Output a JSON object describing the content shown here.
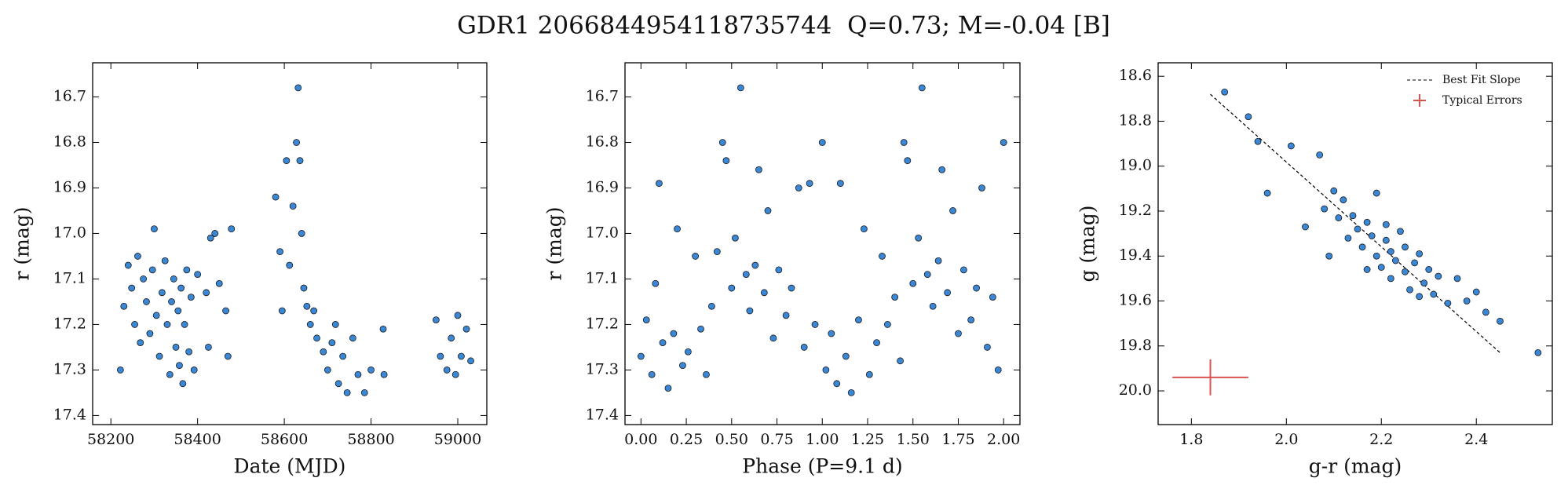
{
  "title": "GDR1 2066844954118735744  Q=0.73; M=-0.04 [B]",
  "chart_data": [
    {
      "type": "scatter",
      "xlabel": "Date (MJD)",
      "ylabel": "r (mag)",
      "color": "#3a87d6",
      "xlim": [
        58158,
        59067
      ],
      "ylim": [
        17.42,
        16.625
      ],
      "xticks": [
        58200,
        58400,
        58600,
        58800,
        59000
      ],
      "yticks": [
        16.7,
        16.8,
        16.9,
        {
          "value": 17,
          "label": "17.0"
        },
        17.1,
        17.2,
        17.3,
        17.4
      ],
      "x": [
        58222,
        58230,
        58240,
        58248,
        58255,
        58262,
        58268,
        58275,
        58282,
        58290,
        58296,
        58300,
        58305,
        58312,
        58318,
        58325,
        58330,
        58336,
        58340,
        58345,
        58350,
        58355,
        58358,
        58362,
        58366,
        58370,
        58375,
        58380,
        58385,
        58392,
        58400,
        58420,
        58425,
        58430,
        58440,
        58450,
        58465,
        58470,
        58478,
        58580,
        58590,
        58595,
        58605,
        58612,
        58620,
        58628,
        58632,
        58636,
        58640,
        58645,
        58652,
        58660,
        58668,
        58675,
        58690,
        58700,
        58710,
        58718,
        58725,
        58735,
        58745,
        58758,
        58770,
        58785,
        58800,
        58828,
        58830,
        58950,
        58960,
        58975,
        58985,
        58995,
        59000,
        59008,
        59020,
        59030
      ],
      "values": [
        17.3,
        17.16,
        17.07,
        17.12,
        17.2,
        17.05,
        17.24,
        17.1,
        17.15,
        17.22,
        17.08,
        16.99,
        17.18,
        17.27,
        17.13,
        17.06,
        17.2,
        17.31,
        17.15,
        17.1,
        17.25,
        17.17,
        17.29,
        17.12,
        17.33,
        17.2,
        17.08,
        17.26,
        17.14,
        17.3,
        17.09,
        17.13,
        17.25,
        17.01,
        17.0,
        17.11,
        17.17,
        17.27,
        16.99,
        16.92,
        17.04,
        17.17,
        16.84,
        17.07,
        16.94,
        16.8,
        16.68,
        16.84,
        17.0,
        17.12,
        17.16,
        17.2,
        17.17,
        17.23,
        17.26,
        17.3,
        17.24,
        17.2,
        17.33,
        17.27,
        17.35,
        17.23,
        17.31,
        17.35,
        17.3,
        17.21,
        17.31,
        17.19,
        17.27,
        17.3,
        17.23,
        17.31,
        17.18,
        17.27,
        17.21,
        17.28
      ]
    },
    {
      "type": "scatter",
      "xlabel": "Phase (P=9.1 d)",
      "ylabel": "r (mag)",
      "color": "#3a87d6",
      "xlim": [
        -0.088,
        2.09
      ],
      "ylim": [
        17.42,
        16.625
      ],
      "xticks": [
        {
          "value": 0,
          "label": "0.00"
        },
        {
          "value": 0.25,
          "label": "0.25"
        },
        {
          "value": 0.5,
          "label": "0.50"
        },
        {
          "value": 0.75,
          "label": "0.75"
        },
        {
          "value": 1,
          "label": "1.00"
        },
        {
          "value": 1.25,
          "label": "1.25"
        },
        {
          "value": 1.5,
          "label": "1.50"
        },
        {
          "value": 1.75,
          "label": "1.75"
        },
        {
          "value": 2,
          "label": "2.00"
        }
      ],
      "yticks": [
        16.7,
        16.8,
        16.9,
        {
          "value": 17,
          "label": "17.0"
        },
        17.1,
        17.2,
        17.3,
        17.4
      ],
      "x": [
        0.0,
        0.03,
        0.06,
        0.08,
        0.1,
        0.12,
        0.15,
        0.18,
        0.2,
        0.23,
        0.26,
        0.3,
        0.33,
        0.36,
        0.39,
        0.42,
        0.45,
        0.47,
        0.5,
        0.52,
        0.55,
        0.58,
        0.6,
        0.63,
        0.65,
        0.68,
        0.7,
        0.73,
        0.76,
        0.8,
        0.83,
        0.87,
        0.9,
        0.93,
        0.96,
        1.0,
        1.02,
        1.05,
        1.08,
        1.1,
        1.13,
        1.16,
        1.2,
        1.23,
        1.26,
        1.3,
        1.33,
        1.36,
        1.4,
        1.43,
        1.45,
        1.47,
        1.5,
        1.53,
        1.55,
        1.58,
        1.61,
        1.64,
        1.66,
        1.69,
        1.72,
        1.75,
        1.78,
        1.82,
        1.85,
        1.88,
        1.91,
        1.94,
        1.97,
        2.0
      ],
      "values": [
        17.27,
        17.19,
        17.31,
        17.11,
        16.89,
        17.24,
        17.34,
        17.22,
        16.99,
        17.29,
        17.26,
        17.05,
        17.21,
        17.31,
        17.16,
        17.04,
        16.8,
        16.84,
        17.12,
        17.01,
        16.68,
        17.09,
        17.17,
        17.07,
        16.86,
        17.13,
        16.95,
        17.23,
        17.08,
        17.18,
        17.12,
        16.9,
        17.25,
        16.89,
        17.2,
        16.8,
        17.3,
        17.22,
        17.33,
        16.89,
        17.27,
        17.35,
        17.19,
        16.99,
        17.31,
        17.24,
        17.05,
        17.2,
        17.14,
        17.28,
        16.8,
        16.84,
        17.11,
        17.01,
        16.68,
        17.09,
        17.16,
        17.06,
        16.86,
        17.13,
        16.95,
        17.22,
        17.08,
        17.19,
        17.12,
        16.9,
        17.25,
        17.14,
        17.3,
        16.8
      ]
    },
    {
      "type": "scatter",
      "xlabel": "g-r (mag)",
      "ylabel": "g (mag)",
      "color": "#3a87d6",
      "xlim": [
        1.73,
        2.56
      ],
      "ylim": [
        20.15,
        18.54
      ],
      "xticks": [
        1.8,
        {
          "value": 2,
          "label": "2.0"
        },
        2.2,
        2.4
      ],
      "yticks": [
        18.6,
        18.8,
        {
          "value": 19,
          "label": "19.0"
        },
        19.2,
        19.4,
        19.6,
        19.8,
        {
          "value": 20,
          "label": "20.0"
        }
      ],
      "x": [
        1.87,
        1.92,
        1.94,
        1.96,
        2.01,
        2.07,
        2.04,
        2.08,
        2.09,
        2.1,
        2.11,
        2.12,
        2.13,
        2.14,
        2.15,
        2.16,
        2.17,
        2.18,
        2.19,
        2.19,
        2.2,
        2.21,
        2.22,
        2.22,
        2.23,
        2.24,
        2.25,
        2.25,
        2.26,
        2.27,
        2.28,
        2.29,
        2.3,
        2.31,
        2.32,
        2.34,
        2.36,
        2.38,
        2.4,
        2.42,
        2.45,
        2.53,
        2.21,
        2.17,
        2.28
      ],
      "values": [
        18.67,
        18.78,
        18.89,
        19.12,
        18.91,
        18.95,
        19.27,
        19.19,
        19.4,
        19.11,
        19.23,
        19.15,
        19.32,
        19.22,
        19.28,
        19.36,
        19.25,
        19.31,
        19.12,
        19.4,
        19.45,
        19.33,
        19.38,
        19.5,
        19.42,
        19.29,
        19.47,
        19.36,
        19.55,
        19.43,
        19.39,
        19.52,
        19.46,
        19.57,
        19.49,
        19.61,
        19.5,
        19.6,
        19.56,
        19.65,
        19.69,
        19.83,
        19.26,
        19.46,
        19.58
      ],
      "fit_line": {
        "name": "Best Fit Slope",
        "color": "#000000",
        "x": [
          1.84,
          2.45
        ],
        "y": [
          18.68,
          19.83
        ]
      },
      "typical_errors": {
        "name": "Typical Errors",
        "color": "#d9534f",
        "x": 1.84,
        "y": 19.94,
        "xerr": 0.08,
        "yerr": 0.08
      },
      "legend": "upper right"
    }
  ]
}
